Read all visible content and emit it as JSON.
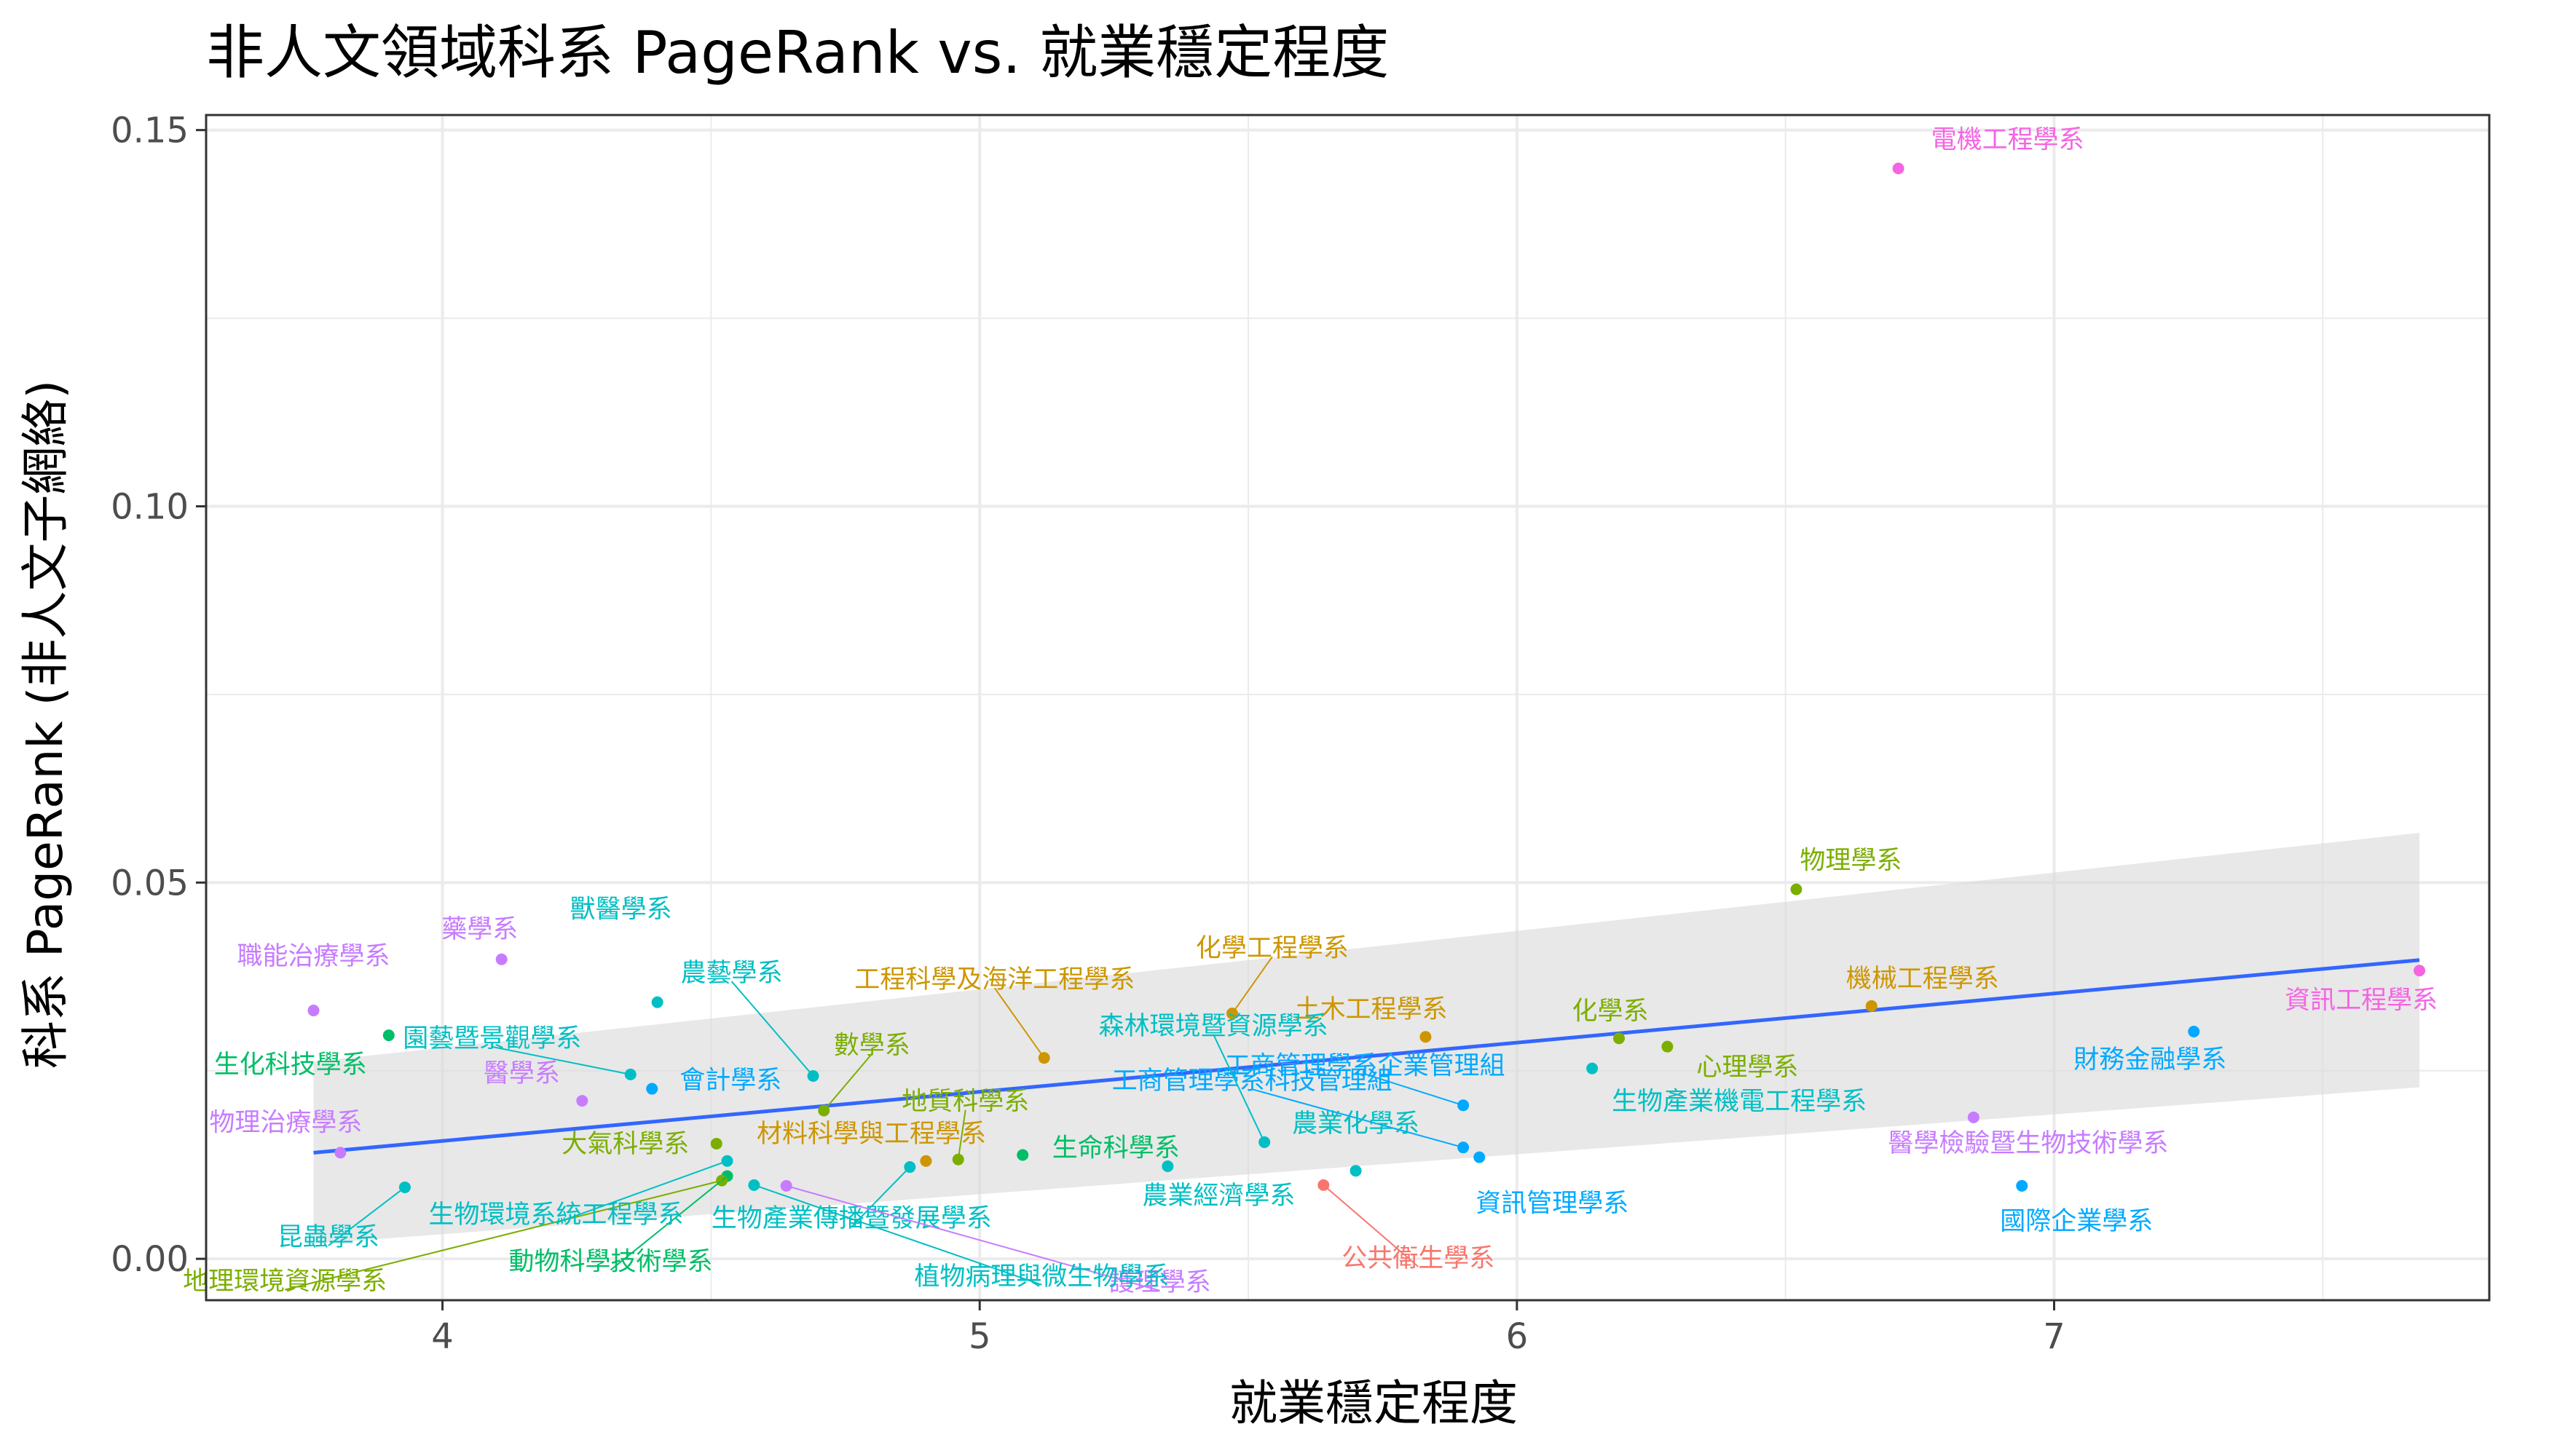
{
  "chart_data": {
    "type": "scatter",
    "title": "非人文領域科系 PageRank vs. 就業穩定程度",
    "xlabel": "就業穩定程度",
    "ylabel": "科系 PageRank (非人文子網絡)",
    "xlim": [
      3.56,
      7.81
    ],
    "ylim": [
      -0.0055,
      0.152
    ],
    "x_ticks": [
      4,
      5,
      6,
      7
    ],
    "x_tick_labels": [
      "4",
      "5",
      "6",
      "7"
    ],
    "y_ticks": [
      0.0,
      0.05,
      0.1,
      0.15
    ],
    "y_tick_labels": [
      "0.00",
      "0.05",
      "0.10",
      "0.15"
    ],
    "grid": true,
    "legend": "none",
    "trend_line": {
      "method": "linear fit with confidence band",
      "x": [
        3.76,
        7.68
      ],
      "y": [
        0.0141,
        0.0397
      ],
      "band_lower": [
        0.002,
        0.0228
      ],
      "band_upper": [
        0.0262,
        0.0566
      ],
      "color": "#3366FF",
      "band_color": "#D9D9D9"
    },
    "points": [
      {
        "label": "電機工程學系",
        "x": 6.71,
        "y": 0.1449,
        "color": "#F564E3"
      },
      {
        "label": "物理學系",
        "x": 6.52,
        "y": 0.0491,
        "color": "#7CAE00"
      },
      {
        "label": "資訊工程學系",
        "x": 7.68,
        "y": 0.0383,
        "color": "#F564E3"
      },
      {
        "label": "機械工程學系",
        "x": 6.66,
        "y": 0.0336,
        "color": "#CD9600"
      },
      {
        "label": "財務金融學系",
        "x": 7.26,
        "y": 0.0302,
        "color": "#00A9FF"
      },
      {
        "label": "化學系",
        "x": 6.19,
        "y": 0.0293,
        "color": "#7CAE00"
      },
      {
        "label": "心理學系",
        "x": 6.28,
        "y": 0.0282,
        "color": "#7CAE00"
      },
      {
        "label": "土木工程學系",
        "x": 5.83,
        "y": 0.0295,
        "color": "#CD9600"
      },
      {
        "label": "化學工程學系",
        "x": 5.47,
        "y": 0.0326,
        "color": "#CD9600"
      },
      {
        "label": "工程科學及海洋工程學系",
        "x": 5.12,
        "y": 0.0267,
        "color": "#CD9600"
      },
      {
        "label": "工商管理學系企業管理組",
        "x": 5.9,
        "y": 0.0204,
        "color": "#00A9FF"
      },
      {
        "label": "工商管理學系科技管理組",
        "x": 5.9,
        "y": 0.0148,
        "color": "#00A9FF"
      },
      {
        "label": "資訊管理學系",
        "x": 5.93,
        "y": 0.0135,
        "color": "#00A9FF"
      },
      {
        "label": "生物產業機電工程學系",
        "x": 6.14,
        "y": 0.0253,
        "color": "#00BFC4"
      },
      {
        "label": "森林環境暨資源學系",
        "x": 5.53,
        "y": 0.0155,
        "color": "#00BFC4"
      },
      {
        "label": "農業化學系",
        "x": 5.7,
        "y": 0.0117,
        "color": "#00BFC4"
      },
      {
        "label": "農業經濟學系",
        "x": 5.35,
        "y": 0.0123,
        "color": "#00BFC4"
      },
      {
        "label": "公共衛生學系",
        "x": 5.64,
        "y": 0.0098,
        "color": "#F8766D"
      },
      {
        "label": "國際企業學系",
        "x": 6.94,
        "y": 0.0097,
        "color": "#00A9FF"
      },
      {
        "label": "醫學檢驗暨生物技術學系",
        "x": 6.85,
        "y": 0.0188,
        "color": "#C77CFF"
      },
      {
        "label": "生命科學系",
        "x": 5.08,
        "y": 0.0138,
        "color": "#00BE67"
      },
      {
        "label": "地質科學系",
        "x": 4.96,
        "y": 0.0132,
        "color": "#7CAE00"
      },
      {
        "label": "材料科學與工程學系",
        "x": 4.9,
        "y": 0.013,
        "color": "#CD9600"
      },
      {
        "label": "生物產業傳播暨發展學系",
        "x": 4.87,
        "y": 0.0122,
        "color": "#00BFC4"
      },
      {
        "label": "數學系",
        "x": 4.71,
        "y": 0.0197,
        "color": "#7CAE00"
      },
      {
        "label": "農藝學系",
        "x": 4.69,
        "y": 0.0243,
        "color": "#00BFC4"
      },
      {
        "label": "護理學系",
        "x": 4.64,
        "y": 0.0097,
        "color": "#C77CFF"
      },
      {
        "label": "植物病理與微生物學系",
        "x": 4.58,
        "y": 0.0098,
        "color": "#00BFC4"
      },
      {
        "label": "動物科學技術學系",
        "x": 4.53,
        "y": 0.011,
        "color": "#00BE67"
      },
      {
        "label": "大氣科學系",
        "x": 4.51,
        "y": 0.0153,
        "color": "#7CAE00"
      },
      {
        "label": "地理環境資源學系",
        "x": 4.52,
        "y": 0.0104,
        "color": "#7CAE00"
      },
      {
        "label": "生物環境系統工程學系",
        "x": 4.53,
        "y": 0.013,
        "color": "#00BFC4"
      },
      {
        "label": "獸醫學系",
        "x": 4.4,
        "y": 0.0341,
        "color": "#00BFC4"
      },
      {
        "label": "會計學系",
        "x": 4.39,
        "y": 0.0226,
        "color": "#00A9FF"
      },
      {
        "label": "園藝暨景觀學系",
        "x": 4.35,
        "y": 0.0245,
        "color": "#00BFC4"
      },
      {
        "label": "醫學系",
        "x": 4.26,
        "y": 0.021,
        "color": "#C77CFF"
      },
      {
        "label": "藥學系",
        "x": 4.11,
        "y": 0.0398,
        "color": "#C77CFF"
      },
      {
        "label": "昆蟲學系",
        "x": 3.93,
        "y": 0.0095,
        "color": "#00BFC4"
      },
      {
        "label": "生化科技學系",
        "x": 3.9,
        "y": 0.0297,
        "color": "#00BE67"
      },
      {
        "label": "職能治療學系",
        "x": 3.76,
        "y": 0.033,
        "color": "#C77CFF"
      },
      {
        "label": "物理治療學系",
        "x": 3.81,
        "y": 0.0141,
        "color": "#C77CFF"
      }
    ]
  }
}
